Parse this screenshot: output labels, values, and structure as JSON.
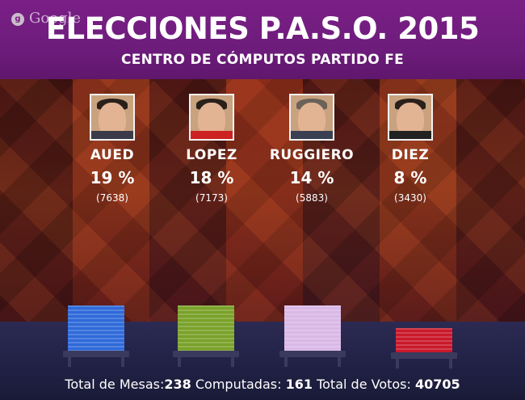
{
  "header": {
    "watermark": "Google",
    "title": "ELECCIONES P.A.S.O. 2015",
    "subtitle_prefix": "CENTRO DE CÓMPUTOS",
    "subtitle_bold": "PARTIDO FE"
  },
  "candidates": [
    {
      "name": "AUED",
      "percent": "19 %",
      "votes": "(7638)",
      "color": "#2f6ad9"
    },
    {
      "name": "LOPEZ",
      "percent": "18 %",
      "votes": "(7173)",
      "color": "#7aa12a"
    },
    {
      "name": "RUGGIERO",
      "percent": "14 %",
      "votes": "(5883)",
      "color": "#d9b8e6"
    },
    {
      "name": "DIEZ",
      "percent": "8 %",
      "votes": "(3430)",
      "color": "#c8192b"
    }
  ],
  "footer": {
    "mesas_label": "Total de Mesas:",
    "mesas_value": "238",
    "computadas_label": "Computadas:",
    "computadas_value": "161",
    "votos_label": "Total de Votos:",
    "votos_value": "40705"
  },
  "colors": {
    "header_bg": "#7a1f86",
    "floor_bg": "#24244a"
  }
}
